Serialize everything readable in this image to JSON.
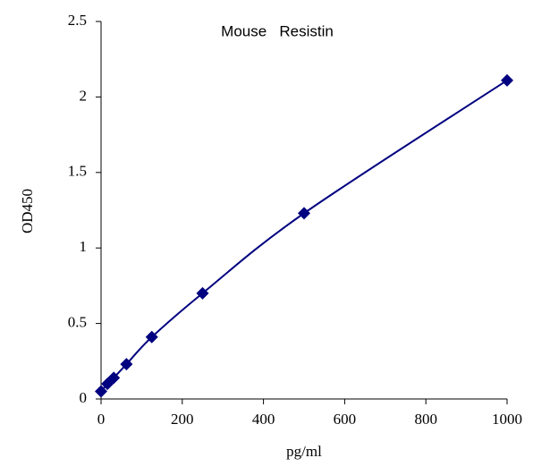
{
  "chart_data": {
    "type": "scatter",
    "title": "Mouse   Resistin",
    "x_label": "pg/ml",
    "y_label": "OD450",
    "x": [
      0,
      15.6,
      31.25,
      62.5,
      125,
      250,
      500,
      1000
    ],
    "series": [
      {
        "color": "#000080",
        "values": [
          0.05,
          0.1,
          0.14,
          0.23,
          0.41,
          0.7,
          1.23,
          2.11
        ]
      }
    ],
    "line": true,
    "marker": "diamond",
    "xlim": [
      0,
      1000
    ],
    "xticks": [
      0,
      200,
      400,
      600,
      800,
      1000
    ],
    "ylim": [
      0,
      2.5
    ],
    "yticks": [
      0,
      0.5,
      1,
      1.5,
      2,
      2.5
    ],
    "grid": false
  }
}
